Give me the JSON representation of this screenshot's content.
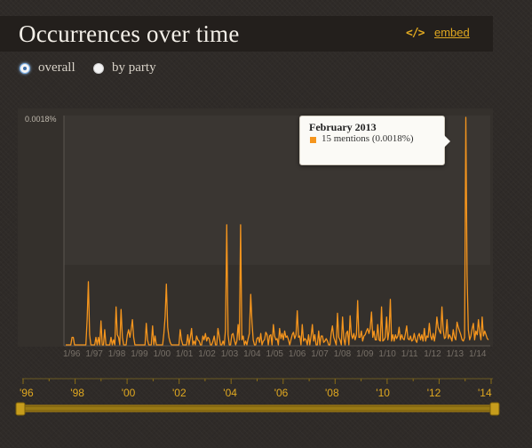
{
  "header": {
    "title": "Occurrences over time",
    "embed_icon": "code-icon",
    "embed_glyph": "</>",
    "embed_label": "embed"
  },
  "view_toggle": {
    "options": [
      {
        "label": "overall",
        "selected": true
      },
      {
        "label": "by party",
        "selected": false
      }
    ]
  },
  "tooltip": {
    "title": "February 2013",
    "text": "15 mentions (0.0018%)"
  },
  "colors": {
    "series": "#f5951d",
    "accent": "#e0a820",
    "background": "#2f2b28"
  },
  "chart_data": {
    "type": "line",
    "ylabel_top": "0.0018%",
    "ylim": [
      0,
      0.0018
    ],
    "x_tick_labels": [
      "1/96",
      "1/97",
      "1/98",
      "1/99",
      "1/00",
      "1/01",
      "1/02",
      "1/03",
      "1/04",
      "1/05",
      "1/06",
      "1/07",
      "1/08",
      "1/09",
      "1/10",
      "1/11",
      "1/12",
      "1/13",
      "1/14"
    ],
    "series": [
      {
        "values": [
          0,
          0,
          0,
          0,
          0,
          6e-05,
          6e-05,
          0,
          0,
          0,
          0,
          0,
          0,
          0,
          0,
          0,
          0,
          0.0002,
          0.0005,
          8e-05,
          0,
          0,
          0,
          0,
          6e-05,
          0,
          6e-05,
          0,
          0.00019,
          0,
          0,
          0.00012,
          0,
          0,
          0,
          0,
          6e-05,
          0,
          4e-05,
          0,
          0.0003,
          8e-05,
          6e-05,
          0,
          0.00028,
          6e-05,
          0,
          0,
          0,
          8e-05,
          0.00012,
          6e-05,
          0.00012,
          0.0002,
          6e-05,
          0,
          0,
          0,
          0,
          0,
          0,
          0,
          0,
          0,
          0.00017,
          4e-05,
          0,
          0,
          0,
          0.00015,
          0,
          7e-05,
          0,
          0,
          0,
          0,
          0,
          0,
          9e-05,
          0.00022,
          0.00048,
          0.00014,
          6e-05,
          2e-05,
          0,
          0,
          0,
          0,
          0,
          0,
          0,
          0.00012,
          4e-05,
          0,
          0,
          0,
          0,
          8e-05,
          0,
          6e-05,
          0.00013,
          0,
          3e-05,
          0,
          7e-05,
          4e-05,
          3e-05,
          0,
          0,
          7e-05,
          4e-05,
          9e-05,
          3e-05,
          6e-05,
          5e-05,
          0,
          0,
          3e-05,
          7e-05,
          0,
          0,
          0.00013,
          7e-05,
          0,
          0,
          3e-05,
          0,
          0.00012,
          0.00095,
          8e-05,
          0,
          0,
          8e-05,
          9e-05,
          4e-05,
          0,
          3e-05,
          0.00016,
          4e-05,
          0.00095,
          4e-05,
          7e-05,
          0,
          3e-05,
          0,
          5e-05,
          9e-05,
          0.0004,
          0.00018,
          4e-05,
          0,
          0,
          5e-05,
          6e-05,
          2e-05,
          9e-05,
          0,
          3e-05,
          4e-05,
          0.0001,
          8e-05,
          0,
          7e-05,
          8e-05,
          0,
          0.00016,
          7e-05,
          4e-05,
          5e-05,
          0,
          0.00013,
          5e-05,
          9e-05,
          4e-05,
          0.00011,
          6e-05,
          7e-05,
          4e-05,
          0,
          4e-05,
          8e-05,
          0.0001,
          5e-05,
          8e-05,
          0.00027,
          6e-05,
          7e-05,
          0,
          0.00016,
          3e-05,
          5e-05,
          4e-05,
          0,
          8e-05,
          0,
          7e-05,
          0.00016,
          3e-05,
          8e-05,
          0,
          0,
          0.00011,
          0,
          7e-05,
          7e-05,
          2e-05,
          3e-05,
          5e-05,
          3e-05,
          0,
          0,
          9e-05,
          0.00015,
          6e-05,
          3e-05,
          0,
          0.00025,
          6e-05,
          4e-05,
          0,
          0.00022,
          5e-05,
          0,
          9e-05,
          0.00011,
          0,
          0.00023,
          8e-05,
          5e-05,
          9e-05,
          4e-05,
          8e-05,
          0.00035,
          6e-05,
          6e-05,
          0.00011,
          3e-05,
          7e-05,
          8e-05,
          0.00011,
          0.00013,
          9e-05,
          0.00013,
          0.00026,
          6e-05,
          0.00011,
          4e-05,
          4e-05,
          0.00016,
          4e-05,
          3e-05,
          0.0003,
          3e-05,
          4e-05,
          6e-05,
          0.00022,
          4e-05,
          0.00011,
          0.00036,
          3e-05,
          8e-05,
          3e-05,
          8e-05,
          5e-05,
          7e-05,
          0.00014,
          4e-05,
          8e-05,
          5e-05,
          4e-05,
          9e-05,
          0.00015,
          5e-05,
          4e-05,
          7e-05,
          3e-05,
          4e-05,
          9e-05,
          4e-05,
          2e-05,
          7e-05,
          9e-05,
          4e-05,
          8e-05,
          3e-05,
          0.00013,
          3e-05,
          7e-05,
          6e-05,
          0.00017,
          7e-05,
          4e-05,
          9e-05,
          3e-05,
          9e-05,
          0.00022,
          0.00014,
          0.00011,
          9e-05,
          0.0003,
          0.00012,
          5e-05,
          6e-05,
          0.0002,
          5e-05,
          8e-05,
          6e-05,
          3e-05,
          0.00012,
          6e-05,
          4e-05,
          0.00018,
          0.00014,
          0.00011,
          8e-05,
          4e-05,
          3e-05,
          6e-05,
          0.0018,
          0.00055,
          0.00012,
          4e-05,
          7e-05,
          0.00013,
          0.00017,
          4e-05,
          0.00011,
          8e-05,
          0.0002,
          0.0001,
          4e-05,
          0.00022,
          7e-05,
          0.00011,
          8e-05,
          5e-05,
          4e-05
        ]
      }
    ],
    "grid": true
  },
  "timeline": {
    "labels": [
      "'96",
      "'98",
      "'00",
      "'02",
      "'04",
      "'06",
      "'08",
      "'10",
      "'12",
      "'14"
    ]
  }
}
